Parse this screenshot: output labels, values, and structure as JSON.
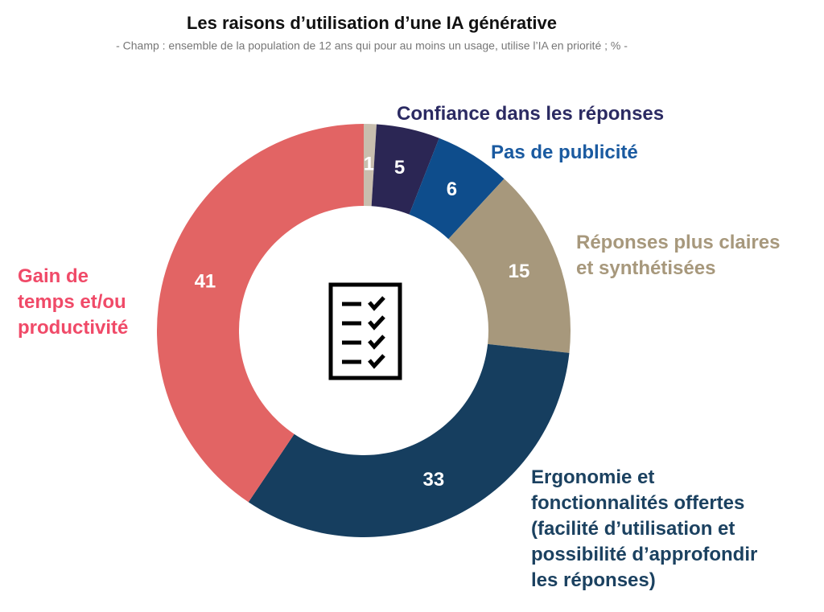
{
  "chart_data": {
    "type": "pie",
    "title": "Les raisons d’utilisation d’une IA générative",
    "subtitle": "- Champ : ensemble de la population de 12 ans qui pour au moins un usage, utilise l’IA en priorité ; % -",
    "categories": [
      null,
      "Confiance dans les réponses",
      "Pas de publicité",
      "Réponses plus claires\net synthétisées",
      "Ergonomie et\nfonctionnalités offertes\n(facilité d’utilisation et\npossibilité d’approfondir\nles réponses)",
      "Gain de\ntemps et/ou\nproductivité"
    ],
    "values": [
      1,
      5,
      6,
      15,
      33,
      41
    ],
    "colors": [
      "#c8beae",
      "#2b2654",
      "#0e4d8c",
      "#a7987c",
      "#163e5f",
      "#e26464"
    ],
    "label_colors": [
      "#c8beae",
      "#2b2a62",
      "#1a5aa0",
      "#a7987c",
      "#1b4160",
      "#f04a68"
    ]
  }
}
